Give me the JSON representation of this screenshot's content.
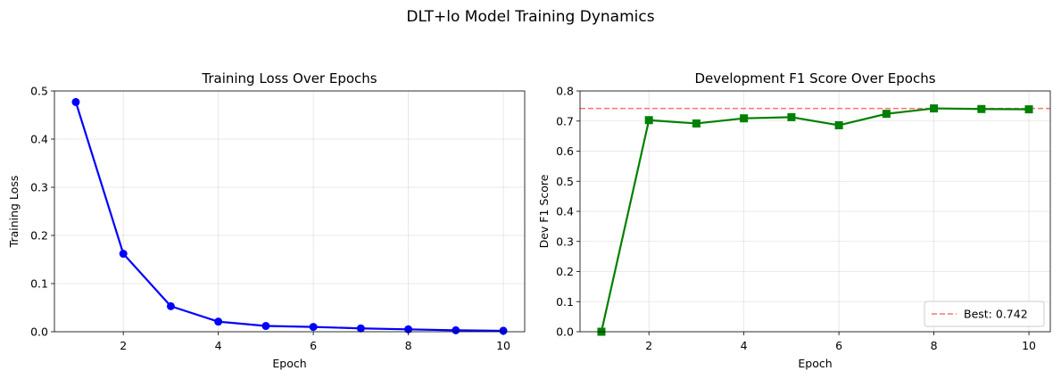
{
  "suptitle": "DLT+lo Model Training Dynamics",
  "chart_data": [
    {
      "type": "line",
      "title": "Training Loss Over Epochs",
      "xlabel": "Epoch",
      "ylabel": "Training Loss",
      "xlim": [
        0.55,
        10.45
      ],
      "ylim": [
        0,
        0.5
      ],
      "xticks": [
        2,
        4,
        6,
        8,
        10
      ],
      "yticks": [
        0.0,
        0.1,
        0.2,
        0.3,
        0.4,
        0.5
      ],
      "ytick_labels": [
        "0.0",
        "0.1",
        "0.2",
        "0.3",
        "0.4",
        "0.5"
      ],
      "grid": true,
      "marker": "circle",
      "color": "#0000ff",
      "x": [
        1,
        2,
        3,
        4,
        5,
        6,
        7,
        8,
        9,
        10
      ],
      "y": [
        0.477,
        0.162,
        0.053,
        0.021,
        0.012,
        0.01,
        0.007,
        0.005,
        0.003,
        0.002
      ]
    },
    {
      "type": "line",
      "title": "Development F1 Score Over Epochs",
      "xlabel": "Epoch",
      "ylabel": "Dev F1 Score",
      "xlim": [
        0.55,
        10.45
      ],
      "ylim": [
        0,
        0.8
      ],
      "xticks": [
        2,
        4,
        6,
        8,
        10
      ],
      "yticks": [
        0.0,
        0.1,
        0.2,
        0.3,
        0.4,
        0.5,
        0.6,
        0.7,
        0.8
      ],
      "ytick_labels": [
        "0.0",
        "0.1",
        "0.2",
        "0.3",
        "0.4",
        "0.5",
        "0.6",
        "0.7",
        "0.8"
      ],
      "grid": true,
      "marker": "square",
      "color": "#008000",
      "x": [
        1,
        2,
        3,
        4,
        5,
        6,
        7,
        8,
        9,
        10
      ],
      "y": [
        0.0,
        0.703,
        0.692,
        0.709,
        0.713,
        0.686,
        0.724,
        0.742,
        0.74,
        0.739
      ],
      "reference_line": {
        "y": 0.742,
        "label": "Best: 0.742",
        "color": "#ff0000",
        "style": "dashed"
      },
      "legend": "bottom-right"
    }
  ]
}
